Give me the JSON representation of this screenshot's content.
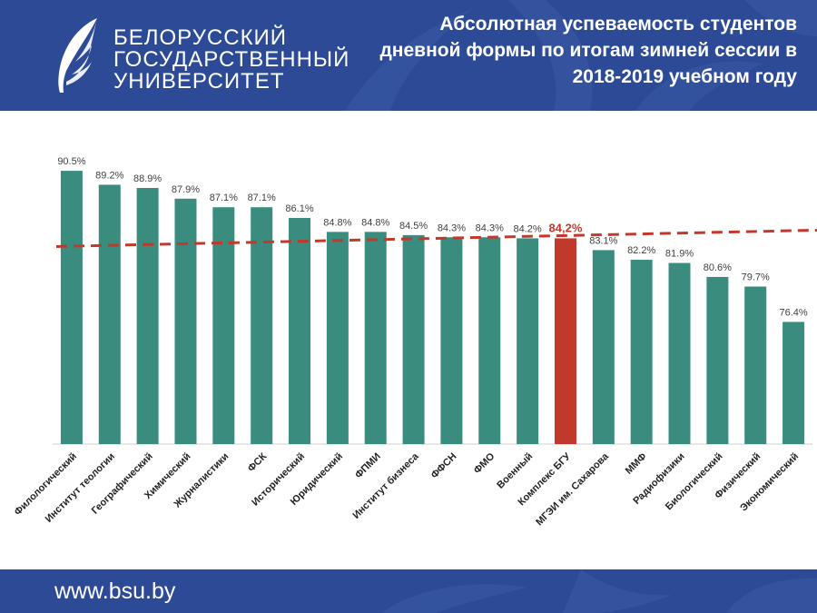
{
  "header": {
    "logo_lines": [
      "БЕЛОРУССКИЙ",
      "ГОСУДАРСТВЕННЫЙ",
      "УНИВЕРСИТЕТ"
    ],
    "title": "Абсолютная успеваемость студентов дневной формы по итогам зимней сессии в 2018-2019 учебном году"
  },
  "footer": {
    "url": "www.bsu.by"
  },
  "colors": {
    "brand": "#2c4a95",
    "bar": "#3a8c7e",
    "highlight": "#c0392b",
    "reference": "#c0392b"
  },
  "chart_data": {
    "type": "bar",
    "categories": [
      "Филологический",
      "Институт теологии",
      "Географический",
      "Химический",
      "Журналистики",
      "ФСК",
      "Исторический",
      "Юридический",
      "ФПМИ",
      "Институт бизнеса",
      "ФФСН",
      "ФМО",
      "Военный",
      "Комплекс БГУ",
      "МГЭИ им. Сахарова",
      "ММФ",
      "Радиофизики",
      "Биологический",
      "Физический",
      "Экономический"
    ],
    "values": [
      90.5,
      89.2,
      88.9,
      87.9,
      87.1,
      87.1,
      86.1,
      84.8,
      84.8,
      84.5,
      84.3,
      84.3,
      84.2,
      84.2,
      83.1,
      82.2,
      81.9,
      80.6,
      79.7,
      76.4
    ],
    "data_labels": [
      "90.5%",
      "89.2%",
      "88.9%",
      "87.9%",
      "87.1%",
      "87.1%",
      "86.1%",
      "84.8%",
      "84.8%",
      "84.5%",
      "84.3%",
      "84.3%",
      "84.2%",
      "84,2%",
      "83.1%",
      "82.2%",
      "81.9%",
      "80.6%",
      "79.7%",
      "76.4%"
    ],
    "highlight_index": 13,
    "reference_line": 84.2,
    "ylim": [
      65,
      92
    ],
    "grid": false,
    "legend": "none"
  }
}
